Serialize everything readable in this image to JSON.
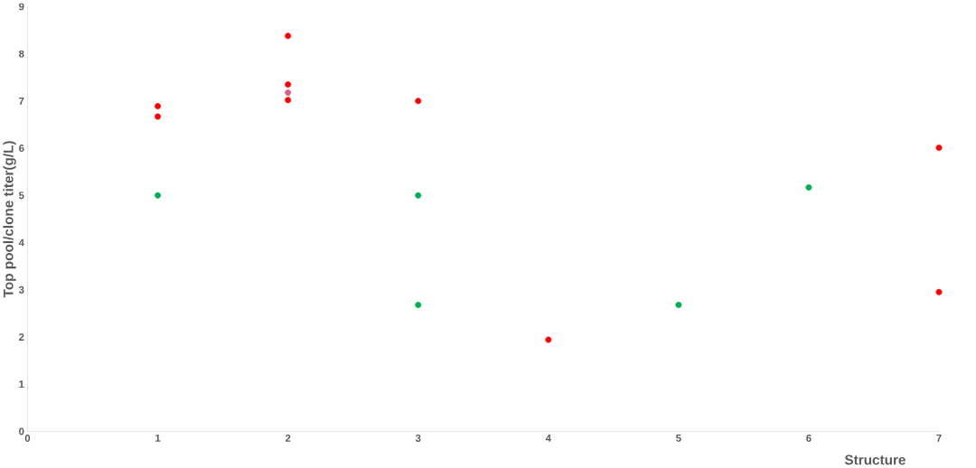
{
  "chart_data": {
    "type": "scatter",
    "xlabel": "Structure",
    "ylabel": "Top pool/clone titer(g/L)",
    "xlim": [
      0,
      7
    ],
    "xticks": [
      0,
      1,
      2,
      3,
      4,
      5,
      6,
      7
    ],
    "ylim": [
      0,
      9
    ],
    "yticks": [
      0,
      1,
      2,
      3,
      4,
      5,
      6,
      7,
      8,
      9
    ],
    "grid": false,
    "series": [
      {
        "color": "#ff0000",
        "x": [
          1,
          1,
          2,
          2,
          2,
          3,
          4,
          7,
          7
        ],
        "values": [
          6.89,
          6.67,
          8.38,
          7.35,
          7.02,
          7.0,
          1.94,
          6.01,
          2.95
        ]
      },
      {
        "color": "#00b050",
        "x": [
          1,
          3,
          3,
          5,
          6
        ],
        "values": [
          5.0,
          5.0,
          2.68,
          2.68,
          5.17
        ]
      },
      {
        "color": "#d9607a",
        "x": [
          2
        ],
        "values": [
          7.18
        ]
      }
    ]
  }
}
